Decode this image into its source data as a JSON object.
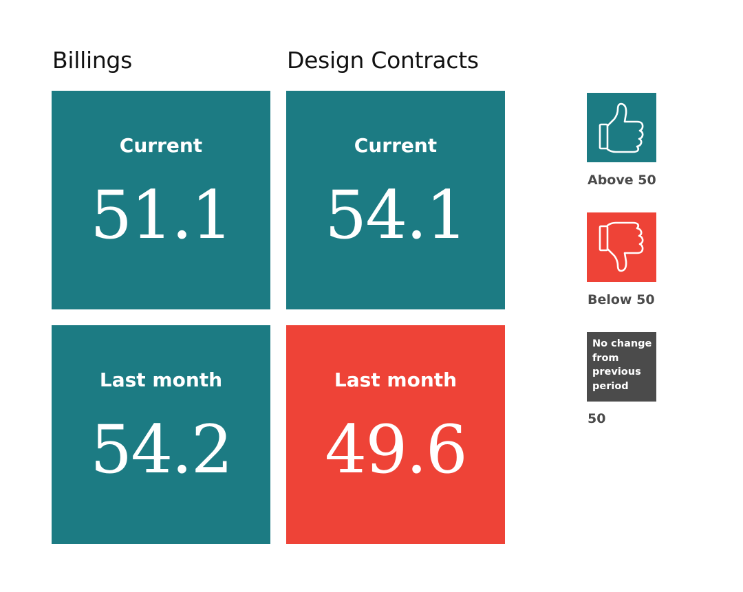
{
  "colors": {
    "above": "#1c7b83",
    "below": "#ee4337",
    "neutral": "#4b4b4b",
    "text": "#111111",
    "legend_text": "#4a4a4a"
  },
  "columns": [
    {
      "title": "Billings",
      "current": {
        "label": "Current",
        "value": "51.1",
        "status": "above"
      },
      "last_month": {
        "label": "Last month",
        "value": "54.2",
        "status": "above"
      }
    },
    {
      "title": "Design Contracts",
      "current": {
        "label": "Current",
        "value": "54.1",
        "status": "above"
      },
      "last_month": {
        "label": "Last month",
        "value": "49.6",
        "status": "below"
      }
    }
  ],
  "legend": {
    "above": {
      "icon": "thumbs-up-icon",
      "caption": "Above 50"
    },
    "below": {
      "icon": "thumbs-down-icon",
      "caption": "Below 50"
    },
    "neutral": {
      "box_text": "No change\nfrom\nprevious\nperiod",
      "caption": "50"
    }
  }
}
